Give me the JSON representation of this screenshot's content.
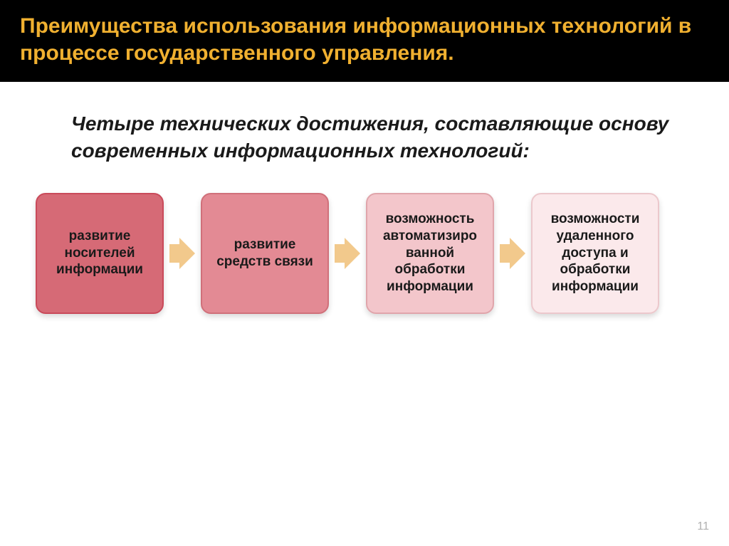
{
  "header": {
    "title": "Преимущества использования информационных технологий в процессе государственного управления.",
    "background": "#000000",
    "text_color": "#f0b030",
    "font_size": 30,
    "font_weight": "bold"
  },
  "subtitle": {
    "text": "Четыре технических достижения, составляющие основу современных информационных технологий:",
    "color": "#1a1a1a",
    "font_size": 28
  },
  "flow": {
    "type": "flowchart",
    "boxes": [
      {
        "label": "развитие носителей информации",
        "bg": "#d66a76",
        "border": "#c94a5a",
        "text_color": "#1a1a1a",
        "font_size": 19
      },
      {
        "label": "развитие средств связи",
        "bg": "#e38a94",
        "border": "#d0707a",
        "text_color": "#1a1a1a",
        "font_size": 19
      },
      {
        "label": "возможность автоматизиро ванной обработки информации",
        "bg": "#f3c6cb",
        "border": "#e0a5ab",
        "text_color": "#1a1a1a",
        "font_size": 19
      },
      {
        "label": "возможности удаленного доступа и обработки информации",
        "bg": "#fbe9eb",
        "border": "#ecc8cc",
        "text_color": "#1a1a1a",
        "font_size": 19
      }
    ],
    "arrow_color": "#f2c98c",
    "box_radius": 14
  },
  "page_number": {
    "value": "11",
    "color": "#b0b0b0"
  }
}
